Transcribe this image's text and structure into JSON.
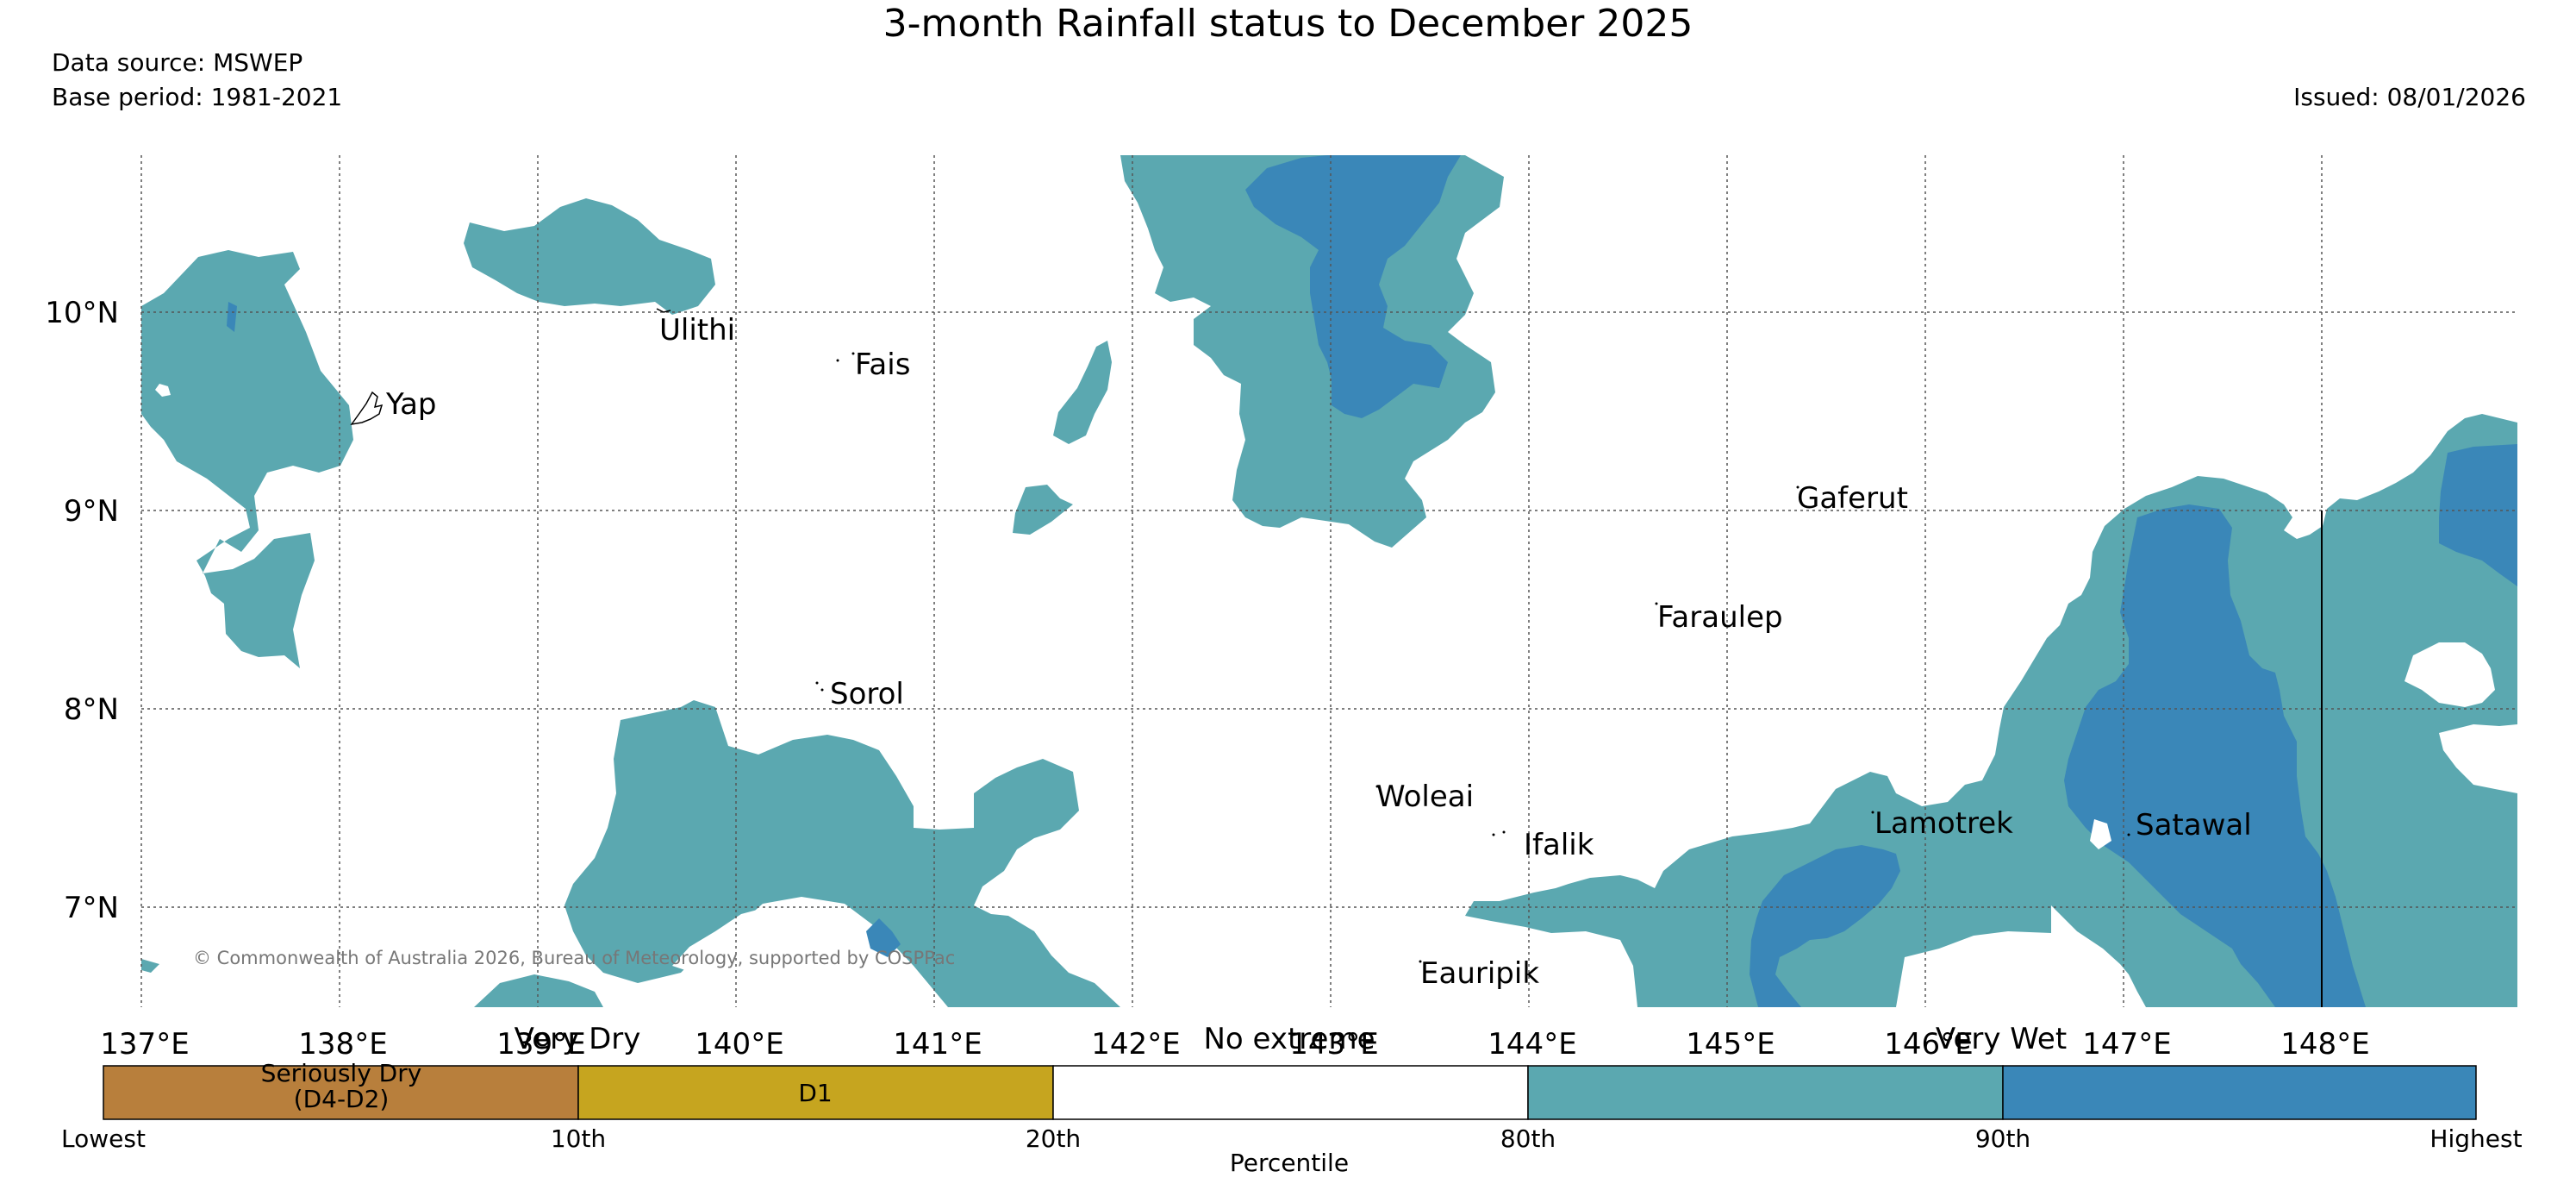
{
  "title": "3-month Rainfall status to December 2025",
  "data_source": "Data source: MSWEP",
  "base_period": "Base period: 1981-2021",
  "issued": "Issued: 08/01/2026",
  "copyright": "© Commonwealth of Australia 2026, Bureau of Meteorology, supported by COSPPac",
  "latitudes": [
    "10°N",
    "9°N",
    "8°N",
    "7°N"
  ],
  "longitudes": [
    "137°E",
    "138°E",
    "139°E",
    "140°E",
    "141°E",
    "142°E",
    "143°E",
    "144°E",
    "145°E",
    "146°E",
    "147°E",
    "148°E"
  ],
  "places": [
    {
      "name": "Yap"
    },
    {
      "name": "Ulithi"
    },
    {
      "name": "Fais"
    },
    {
      "name": "Sorol"
    },
    {
      "name": "Gaferut"
    },
    {
      "name": "Faraulep"
    },
    {
      "name": "Woleai"
    },
    {
      "name": "Ifalik"
    },
    {
      "name": "Lamotrek"
    },
    {
      "name": "Satawal"
    },
    {
      "name": "Eauripik"
    }
  ],
  "legend": {
    "categories": {
      "very_dry": "Very Dry",
      "no_extreme": "No extreme",
      "very_wet": "Very Wet"
    },
    "segments": [
      {
        "label_line1": "Seriously Dry",
        "label_line2": "(D4-D2)",
        "color": "#b87f3c"
      },
      {
        "label_line1": "D1",
        "label_line2": "",
        "color": "#c6a51f"
      },
      {
        "label_line1": "",
        "label_line2": "",
        "color": "#ffffff"
      },
      {
        "label_line1": "",
        "label_line2": "",
        "color": "#5ba8b0"
      },
      {
        "label_line1": "",
        "label_line2": "",
        "color": "#3a87b8"
      }
    ],
    "ticks": [
      "Lowest",
      "10th",
      "20th",
      "80th",
      "90th",
      "Highest"
    ],
    "axis_label": "Percentile"
  },
  "colors": {
    "wet": "#5ba8b0",
    "very_wet": "#3a87b8"
  }
}
